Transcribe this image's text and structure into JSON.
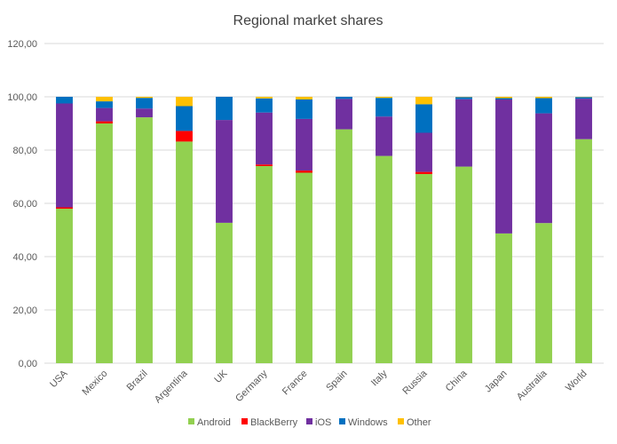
{
  "chart_data": {
    "type": "bar",
    "stacked": true,
    "title": "Regional market shares",
    "xlabel": "",
    "ylabel": "",
    "ylim": [
      0,
      120
    ],
    "yticks": [
      "0,00",
      "20,00",
      "40,00",
      "60,00",
      "80,00",
      "100,00",
      "120,00"
    ],
    "grid": true,
    "legend_position": "bottom",
    "categories": [
      "USA",
      "Mexico",
      "Brazil",
      "Argentina",
      "UK",
      "Germany",
      "France",
      "Spain",
      "Italy",
      "Russia",
      "China",
      "Japan",
      "Australia",
      "World"
    ],
    "series": [
      {
        "name": "Android",
        "color": "#92d050",
        "values": [
          58.0,
          90.0,
          92.3,
          83.2,
          52.7,
          74.0,
          71.5,
          87.8,
          77.8,
          71.0,
          73.8,
          48.7,
          52.6,
          84.1
        ]
      },
      {
        "name": "BlackBerry",
        "color": "#ff0000",
        "values": [
          0.5,
          0.8,
          0.0,
          4.0,
          0.0,
          0.6,
          0.8,
          0.0,
          0.0,
          0.8,
          0.0,
          0.0,
          0.0,
          0.0
        ]
      },
      {
        "name": "iOS",
        "color": "#7030a0",
        "values": [
          39.0,
          5.0,
          3.3,
          0.0,
          38.6,
          19.5,
          19.4,
          11.4,
          14.8,
          14.7,
          25.3,
          50.3,
          41.2,
          15.2
        ]
      },
      {
        "name": "Windows",
        "color": "#0070c0",
        "values": [
          2.5,
          2.5,
          4.0,
          9.3,
          8.7,
          5.3,
          7.3,
          0.8,
          7.0,
          10.7,
          0.8,
          0.5,
          5.7,
          0.6
        ]
      },
      {
        "name": "Other",
        "color": "#ffc000",
        "values": [
          0.0,
          1.7,
          0.4,
          3.5,
          0.0,
          0.6,
          1.0,
          0.0,
          0.4,
          2.8,
          0.1,
          0.5,
          0.5,
          0.1
        ]
      }
    ]
  }
}
